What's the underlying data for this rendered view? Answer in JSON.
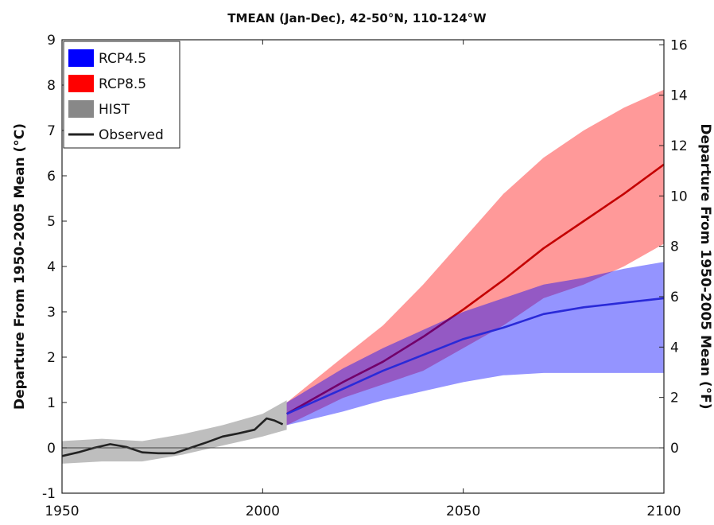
{
  "chart_data": {
    "type": "line",
    "title": "TMEAN (Jan-Dec), 42-50°N, 110-124°W",
    "ylabel": "Departure From 1950-2005 Mean (°C)",
    "ylabel_right": "Departure From 1950-2005 Mean (°F)",
    "xlim": [
      1950,
      2100
    ],
    "ylim": [
      -1,
      9
    ],
    "ylim_right": [
      -1.8,
      16.2
    ],
    "x_ticks": [
      "1950",
      "2000",
      "2050",
      "2100"
    ],
    "y_ticks": [
      "-1",
      "0",
      "1",
      "2",
      "3",
      "4",
      "5",
      "6",
      "7",
      "8",
      "9"
    ],
    "y_ticks_right": [
      "0",
      "2",
      "4",
      "6",
      "8",
      "10",
      "12",
      "14",
      "16"
    ],
    "legend_position": "top-left",
    "zero_line": true,
    "series": [
      {
        "name": "HIST",
        "color": "#888888",
        "kind": "band",
        "x": [
          1950,
          1960,
          1970,
          1980,
          1990,
          2000,
          2006
        ],
        "lower": [
          -0.35,
          -0.3,
          -0.3,
          -0.15,
          0.05,
          0.25,
          0.4
        ],
        "upper": [
          0.15,
          0.2,
          0.15,
          0.3,
          0.5,
          0.75,
          1.05
        ]
      },
      {
        "name": "Observed",
        "color": "#222222",
        "kind": "line",
        "x": [
          1950,
          1954,
          1958,
          1962,
          1966,
          1970,
          1974,
          1978,
          1982,
          1986,
          1990,
          1994,
          1998,
          2001,
          2003,
          2005
        ],
        "y": [
          -0.18,
          -0.1,
          0.0,
          0.08,
          0.02,
          -0.1,
          -0.12,
          -0.12,
          0.0,
          0.12,
          0.25,
          0.32,
          0.4,
          0.65,
          0.6,
          0.52
        ]
      },
      {
        "name": "RCP8.5",
        "color": "#ff0000",
        "kind": "band",
        "x": [
          2006,
          2020,
          2030,
          2040,
          2050,
          2060,
          2070,
          2080,
          2090,
          2100
        ],
        "lower": [
          0.5,
          1.1,
          1.4,
          1.7,
          2.2,
          2.7,
          3.3,
          3.6,
          4.0,
          4.5
        ],
        "upper": [
          1.0,
          2.0,
          2.7,
          3.6,
          4.6,
          5.6,
          6.4,
          7.0,
          7.5,
          7.9
        ],
        "median": [
          0.75,
          1.45,
          1.9,
          2.45,
          3.05,
          3.7,
          4.4,
          5.0,
          5.6,
          6.25
        ]
      },
      {
        "name": "RCP4.5",
        "color": "#0000ff",
        "kind": "band",
        "x": [
          2006,
          2020,
          2030,
          2040,
          2050,
          2060,
          2070,
          2080,
          2090,
          2100
        ],
        "lower": [
          0.5,
          0.8,
          1.05,
          1.25,
          1.45,
          1.6,
          1.65,
          1.65,
          1.65,
          1.65
        ],
        "upper": [
          1.0,
          1.75,
          2.2,
          2.6,
          3.0,
          3.3,
          3.6,
          3.75,
          3.95,
          4.1
        ],
        "median": [
          0.75,
          1.3,
          1.7,
          2.05,
          2.4,
          2.65,
          2.95,
          3.1,
          3.2,
          3.3
        ]
      }
    ]
  }
}
